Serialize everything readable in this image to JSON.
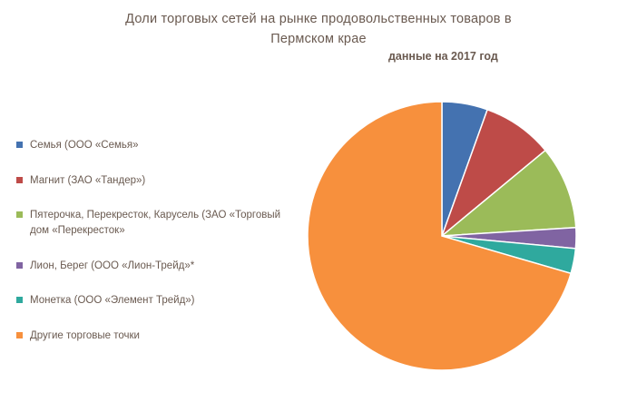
{
  "title": {
    "line1": "Доли торговых сетей на рынке продовольственных товаров в",
    "line2": "Пермском крае"
  },
  "subtitle": "данные на 2017 год",
  "chart_data": {
    "type": "pie",
    "title": "Доли торговых сетей на рынке продовольственных товаров в Пермском крае",
    "subtitle": "данные на 2017 год",
    "legend_position": "left",
    "units": "percent",
    "slices": [
      {
        "label": "Семья (ООО «Семья»",
        "value": 5.5,
        "color": "#4472b0"
      },
      {
        "label": "Магнит (ЗАО «Тандер»)",
        "value": 8.5,
        "color": "#be4b48"
      },
      {
        "label": "Пятерочка, Перекресток, Карусель (ЗАО «Торговый дом «Перекресток»",
        "value": 10,
        "color": "#9bbb59"
      },
      {
        "label": "Лион, Берег (ООО «Лион-Трейд»*",
        "value": 2.5,
        "color": "#8064a2"
      },
      {
        "label": "Монетка (ООО «Элемент Трейд»)",
        "value": 3,
        "color": "#2fa99e"
      },
      {
        "label": "Другие торговые точки",
        "value": 70.5,
        "color": "#f7903d"
      }
    ]
  }
}
